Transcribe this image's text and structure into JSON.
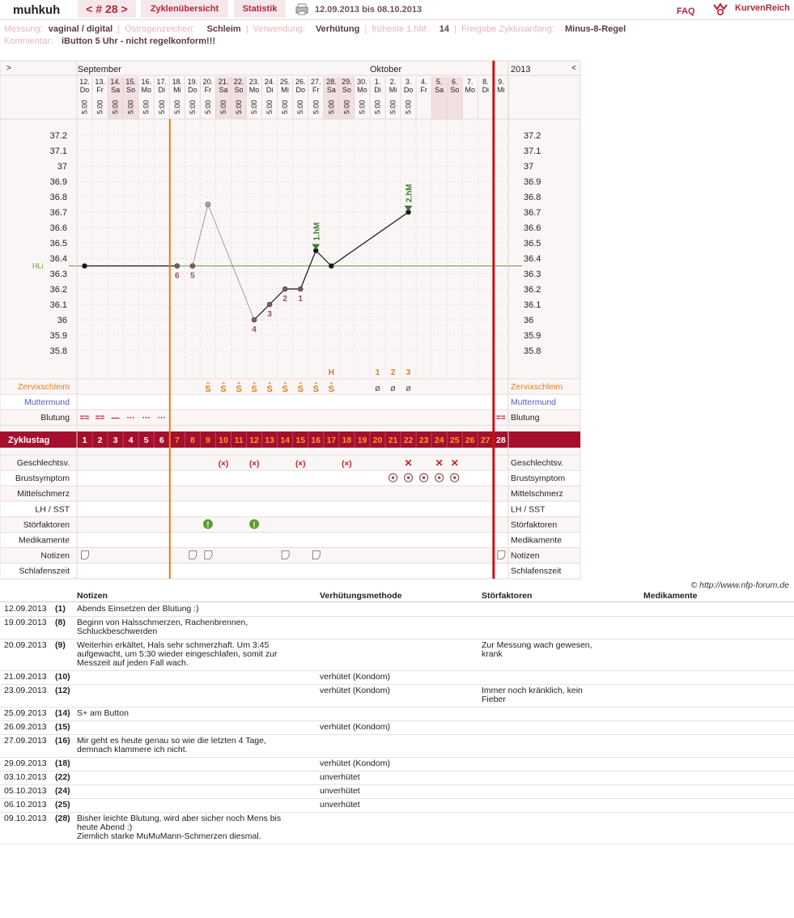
{
  "header": {
    "username": "muhkuh",
    "cycle_nav": "< # 28 >",
    "tab_overview": "Zyklenübersicht",
    "tab_stats": "Statistik",
    "date_range": "12.09.2013 bis 08.10.2013",
    "faq": "FAQ",
    "brand": "KurvenReich"
  },
  "meta": {
    "messung_label": "Messung:",
    "messung_value": "vaginal / digital",
    "oestrogen_label": "Östrogenzeichen:",
    "oestrogen_value": "Schleim",
    "verwendung_label": "Verwendung:",
    "verwendung_value": "Verhütung",
    "frueheste_label": "früheste 1.hM:",
    "frueheste_value": "14",
    "freigabe_label": "Freigabe Zyklusanfang:",
    "freigabe_value": "Minus-8-Regel",
    "kommentar_label": "Kommentar:",
    "kommentar_value": "iButton 5 Uhr - nicht regelkonform!!!"
  },
  "chart_data": {
    "type": "line",
    "months": {
      "left": "September",
      "right": "Oktober",
      "year": "2013"
    },
    "nav_left": ">",
    "nav_right": "<",
    "day_numbers": [
      "12.",
      "13.",
      "14.",
      "15.",
      "16.",
      "17.",
      "18.",
      "19.",
      "20.",
      "21.",
      "22.",
      "23.",
      "24.",
      "25.",
      "26.",
      "27.",
      "28.",
      "29.",
      "30.",
      "1.",
      "2.",
      "3.",
      "4.",
      "5.",
      "6.",
      "7.",
      "8.",
      "9."
    ],
    "weekdays": [
      "Do",
      "Fr",
      "Sa",
      "So",
      "Mo",
      "Di",
      "Mi",
      "Do",
      "Fr",
      "Sa",
      "So",
      "Mo",
      "Di",
      "Mi",
      "Do",
      "Fr",
      "Sa",
      "So",
      "Mo",
      "Di",
      "Mi",
      "Do",
      "Fr",
      "Sa",
      "So",
      "Mo",
      "Di",
      "Mi"
    ],
    "times": [
      "5:00",
      "5:00",
      "5:00",
      "5:00",
      "5:00",
      "5:00",
      "5:00",
      "5:00",
      "5:00",
      "5:00",
      "5:00",
      "5:00",
      "5:00",
      "5:00",
      "5:00",
      "5:00",
      "5:00",
      "5:00",
      "5:00",
      "5:00",
      "5:00",
      "5:00",
      "",
      "",
      "",
      "",
      "",
      ""
    ],
    "weekend_cols": [
      2,
      3,
      9,
      10,
      16,
      17,
      23,
      24
    ],
    "y_ticks": [
      "37.2",
      "37.1",
      "37",
      "36.9",
      "36.8",
      "36.7",
      "36.6",
      "36.5",
      "36.4",
      "36.3",
      "36.2",
      "36.1",
      "36",
      "35.9",
      "35.8"
    ],
    "ylim": [
      35.8,
      37.2
    ],
    "hl_label": "HLi",
    "hl_value": 36.35,
    "coverline": 36.35,
    "temperatures": [
      36.35,
      null,
      null,
      null,
      null,
      null,
      36.35,
      36.35,
      36.75,
      null,
      null,
      36.0,
      36.1,
      36.2,
      36.2,
      36.45,
      36.35,
      null,
      null,
      null,
      null,
      36.7,
      null,
      null,
      null,
      null,
      null,
      null
    ],
    "excluded_days": [
      8
    ],
    "point_labels": [
      {
        "day": 7,
        "text": "6"
      },
      {
        "day": 8,
        "text": "5"
      },
      {
        "day": 12,
        "text": "4"
      },
      {
        "day": 13,
        "text": "3"
      },
      {
        "day": 14,
        "text": "2"
      },
      {
        "day": 15,
        "text": "1"
      }
    ],
    "markers": [
      {
        "day": 16,
        "text": "1.hM"
      },
      {
        "day": 22,
        "text": "2.hM"
      }
    ],
    "h_row": [
      {
        "day": 17,
        "text": "H"
      },
      {
        "day": 20,
        "text": "1"
      },
      {
        "day": 21,
        "text": "2"
      },
      {
        "day": 22,
        "text": "3"
      }
    ],
    "orange_line_after_day": 6,
    "red_line_after_day": 27
  },
  "rows": {
    "zervix": "Zervixschleim",
    "muttermund": "Muttermund",
    "blutung": "Blutung",
    "zyklustag": "Zyklustag",
    "geschlecht": "Geschlechtsv.",
    "brust": "Brustsymptom",
    "mittel": "Mittelschmerz",
    "lh": "LH / SST",
    "stoer": "Störfaktoren",
    "medi": "Medikamente",
    "notizen": "Notizen",
    "schlaf": "Schlafenszeit"
  },
  "zervix_marks": {
    "s_days": [
      9,
      10,
      11,
      12,
      13,
      14,
      15,
      16,
      17
    ],
    "s_glyph": "S",
    "slash_days": [
      20,
      21,
      22
    ],
    "slash_glyph": "ø"
  },
  "bleeding": {
    "days": [
      1,
      2,
      3,
      4,
      5,
      6,
      28
    ],
    "glyphs": [
      "==",
      "==",
      "—",
      "···",
      "···",
      "···",
      "=="
    ]
  },
  "cycle_days": [
    "1",
    "2",
    "3",
    "4",
    "5",
    "6",
    "7",
    "8",
    "9",
    "10",
    "11",
    "12",
    "13",
    "14",
    "15",
    "16",
    "17",
    "18",
    "19",
    "20",
    "21",
    "22",
    "23",
    "24",
    "25",
    "26",
    "27",
    "28"
  ],
  "geschlecht_marks": [
    {
      "day": 10,
      "glyph": "(×)"
    },
    {
      "day": 12,
      "glyph": "(×)"
    },
    {
      "day": 15,
      "glyph": "(×)"
    },
    {
      "day": 18,
      "glyph": "(×)"
    },
    {
      "day": 22,
      "glyph": "✕"
    },
    {
      "day": 24,
      "glyph": "✕"
    },
    {
      "day": 25,
      "glyph": "✕"
    }
  ],
  "brust_days": [
    21,
    22,
    23,
    24,
    25
  ],
  "stoer_days": [
    9,
    12
  ],
  "notiz_days": [
    1,
    8,
    9,
    14,
    16,
    28
  ],
  "copyright": "© http://www.nfp-forum.de",
  "notes": {
    "headers": [
      "Notizen",
      "Verhütungsmethode",
      "Störfaktoren",
      "Medikamente"
    ],
    "rows": [
      {
        "date": "12.09.2013",
        "day": "(1)",
        "note": "Abends Einsetzen der Blutung :)",
        "method": "",
        "stoer": ""
      },
      {
        "date": "19.09.2013",
        "day": "(8)",
        "note": "Beginn von Halsschmerzen, Rachenbrennen,\nSchluckbeschwerden",
        "method": "",
        "stoer": ""
      },
      {
        "date": "20.09.2013",
        "day": "(9)",
        "note": "Weiterhin erkältet, Hals sehr schmerzhaft. Um 3:45\naufgewacht, um 5:30 wieder eingeschlafen, somit zur\nMesszeit auf jeden Fall wach.",
        "method": "",
        "stoer": "Zur Messung wach gewesen,\nkrank"
      },
      {
        "date": "21.09.2013",
        "day": "(10)",
        "note": "",
        "method": "verhütet (Kondom)",
        "stoer": ""
      },
      {
        "date": "23.09.2013",
        "day": "(12)",
        "note": "",
        "method": "verhütet (Kondom)",
        "stoer": "Immer noch kränklich, kein\nFieber"
      },
      {
        "date": "25.09.2013",
        "day": "(14)",
        "note": "S+ am Button",
        "method": "",
        "stoer": ""
      },
      {
        "date": "26.09.2013",
        "day": "(15)",
        "note": "",
        "method": "verhütet (Kondom)",
        "stoer": ""
      },
      {
        "date": "27.09.2013",
        "day": "(16)",
        "note": "Mir geht es heute genau so wie die letzten 4 Tage,\ndemnach klammere ich nicht.",
        "method": "",
        "stoer": ""
      },
      {
        "date": "29.09.2013",
        "day": "(18)",
        "note": "",
        "method": "verhütet (Kondom)",
        "stoer": ""
      },
      {
        "date": "03.10.2013",
        "day": "(22)",
        "note": "",
        "method": "unverhütet",
        "stoer": ""
      },
      {
        "date": "05.10.2013",
        "day": "(24)",
        "note": "",
        "method": "unverhütet",
        "stoer": ""
      },
      {
        "date": "06.10.2013",
        "day": "(25)",
        "note": "",
        "method": "unverhütet",
        "stoer": ""
      },
      {
        "date": "09.10.2013",
        "day": "(28)",
        "note": "Bisher leichte Blutung, wird aber sicher noch Mens bis\nheute Abend :)\nZiemlich starke MuMuMann-Schmerzen diesmal.",
        "method": "",
        "stoer": ""
      }
    ]
  },
  "colors": {
    "brand_red": "#b3263a",
    "orange": "#e87c17",
    "red_line": "#cc1111",
    "zyklus_bar": "#a50f2d",
    "hl_green": "#6a9a3a",
    "label_mauve": "#8a5560"
  }
}
